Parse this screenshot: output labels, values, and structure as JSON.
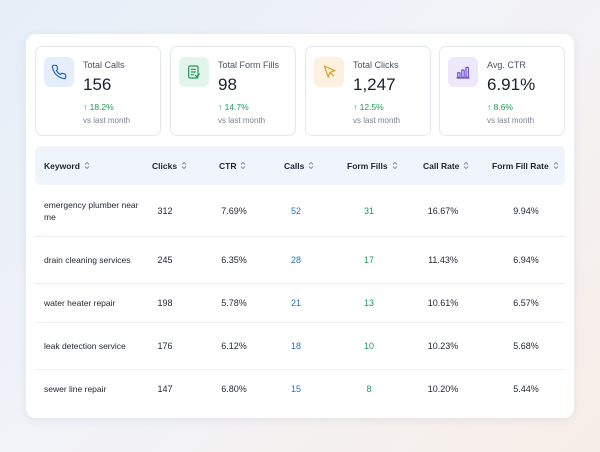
{
  "stats": [
    {
      "label": "Total Calls",
      "value": "156",
      "delta": "↑ 18.2%",
      "sub": "vs last month",
      "icon": "phone-icon",
      "icon_bg": "#e5eefb",
      "icon_color": "#2566c2"
    },
    {
      "label": "Total Form Fills",
      "value": "98",
      "delta": "↑ 14.7%",
      "sub": "vs last month",
      "icon": "form-icon",
      "icon_bg": "#e3f4ea",
      "icon_color": "#1e9a5a"
    },
    {
      "label": "Total Clicks",
      "value": "1,247",
      "delta": "↑ 12.5%",
      "sub": "vs last month",
      "icon": "cursor-icon",
      "icon_bg": "#fcf1e0",
      "icon_color": "#e2a11b"
    },
    {
      "label": "Avg. CTR",
      "value": "6.91%",
      "delta": "↑ 8.6%",
      "sub": "vs last month",
      "icon": "bar-chart-icon",
      "icon_bg": "#ede8fb",
      "icon_color": "#6c4fd6"
    }
  ],
  "table": {
    "headers": [
      "Keyword",
      "Clicks",
      "CTR",
      "Calls",
      "Form Fills",
      "Call Rate",
      "Form Fill Rate"
    ],
    "rows": [
      {
        "keyword": "emergency plumber near me",
        "clicks": "312",
        "ctr": "7.69%",
        "calls": "52",
        "form_fills": "31",
        "call_rate": "16.67%",
        "form_fill_rate": "9.94%"
      },
      {
        "keyword": "drain cleaning services",
        "clicks": "245",
        "ctr": "6.35%",
        "calls": "28",
        "form_fills": "17",
        "call_rate": "11.43%",
        "form_fill_rate": "6.94%"
      },
      {
        "keyword": "water heater repair",
        "clicks": "198",
        "ctr": "5.78%",
        "calls": "21",
        "form_fills": "13",
        "call_rate": "10.61%",
        "form_fill_rate": "6.57%"
      },
      {
        "keyword": "leak detection service",
        "clicks": "176",
        "ctr": "6.12%",
        "calls": "18",
        "form_fills": "10",
        "call_rate": "10.23%",
        "form_fill_rate": "5.68%"
      },
      {
        "keyword": "sewer line repair",
        "clicks": "147",
        "ctr": "6.80%",
        "calls": "15",
        "form_fills": "8",
        "call_rate": "10.20%",
        "form_fill_rate": "5.44%"
      }
    ]
  },
  "colors": {
    "calls": "#2570c4",
    "form_fills": "#1e9a5a",
    "delta_positive": "#1e9a5a"
  }
}
